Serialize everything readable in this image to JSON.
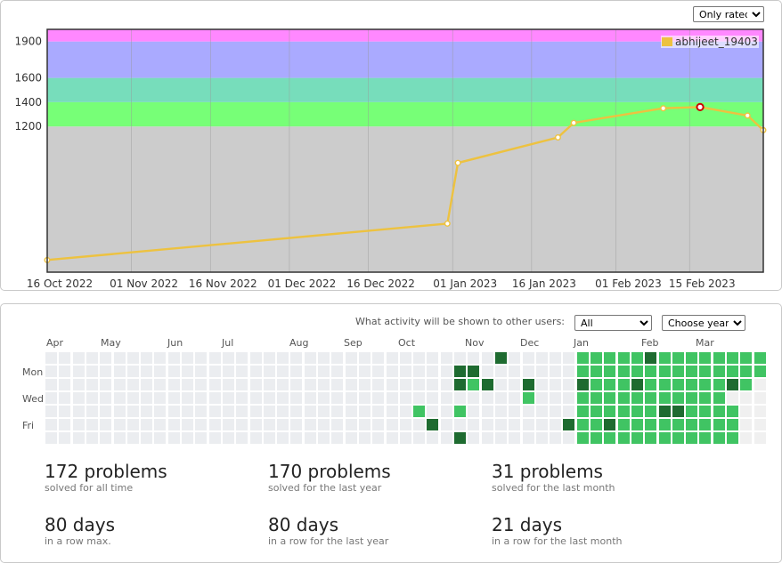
{
  "controls": {
    "rated_filter": {
      "selected": "Only rated"
    },
    "visibility": {
      "label": "What activity will be shown to other users:",
      "selected": "All"
    },
    "year": {
      "selected": "Choose year"
    }
  },
  "chart_data": {
    "type": "line",
    "title": "",
    "xlabel": "",
    "ylabel": "",
    "x_ticks": [
      "16 Oct 2022",
      "01 Nov 2022",
      "16 Nov 2022",
      "01 Dec 2022",
      "16 Dec 2022",
      "01 Jan 2023",
      "16 Jan 2023",
      "01 Feb 2023",
      "15 Feb 2023"
    ],
    "y_ticks": [
      1200,
      1400,
      1600,
      1900
    ],
    "ylim": [
      0,
      2000
    ],
    "xlim": [
      "2022-10-16",
      "2023-03-01"
    ],
    "bands": [
      {
        "from": 0,
        "to": 1200,
        "color": "#cccccc"
      },
      {
        "from": 1200,
        "to": 1400,
        "color": "#77ff77"
      },
      {
        "from": 1400,
        "to": 1600,
        "color": "#77ddbb"
      },
      {
        "from": 1600,
        "to": 1900,
        "color": "#aaaaff"
      },
      {
        "from": 1900,
        "to": 2000,
        "color": "#ff88ff"
      }
    ],
    "series": [
      {
        "name": "abhijeet_19403",
        "color": "#edc240",
        "points": [
          {
            "x": "2022-10-16",
            "y": 100
          },
          {
            "x": "2022-12-31",
            "y": 400
          },
          {
            "x": "2023-01-02",
            "y": 900
          },
          {
            "x": "2023-01-21",
            "y": 1110
          },
          {
            "x": "2023-01-24",
            "y": 1230
          },
          {
            "x": "2023-02-10",
            "y": 1350
          },
          {
            "x": "2023-02-17",
            "y": 1360,
            "highlight": true
          },
          {
            "x": "2023-02-26",
            "y": 1290
          },
          {
            "x": "2023-03-01",
            "y": 1170
          }
        ]
      }
    ]
  },
  "heatmap": {
    "months": [
      "Apr",
      "May",
      "Jun",
      "Jul",
      "Aug",
      "Sep",
      "Oct",
      "Nov",
      "Dec",
      "Jan",
      "Feb",
      "Mar"
    ],
    "day_labels": [
      "Mon",
      "Wed",
      "Fri"
    ],
    "colors": {
      "0": "#ebedf0",
      "1": "#f0f0f0",
      "2": "#40c463",
      "3": "#1e6b30"
    },
    "weeks": [
      [
        0,
        0,
        0,
        0,
        0,
        0,
        0
      ],
      [
        0,
        0,
        0,
        0,
        0,
        0,
        0
      ],
      [
        0,
        0,
        0,
        0,
        0,
        0,
        0
      ],
      [
        0,
        0,
        0,
        0,
        0,
        0,
        0
      ],
      [
        0,
        0,
        0,
        0,
        0,
        0,
        0
      ],
      [
        0,
        0,
        0,
        0,
        0,
        0,
        0
      ],
      [
        0,
        0,
        0,
        0,
        0,
        0,
        0
      ],
      [
        0,
        0,
        0,
        0,
        0,
        0,
        0
      ],
      [
        0,
        0,
        0,
        0,
        0,
        0,
        0
      ],
      [
        0,
        0,
        0,
        0,
        0,
        0,
        0
      ],
      [
        0,
        0,
        0,
        0,
        0,
        0,
        0
      ],
      [
        0,
        0,
        0,
        0,
        0,
        0,
        0
      ],
      [
        0,
        0,
        0,
        0,
        0,
        0,
        0
      ],
      [
        0,
        0,
        0,
        0,
        0,
        0,
        0
      ],
      [
        0,
        0,
        0,
        0,
        0,
        0,
        0
      ],
      [
        0,
        0,
        0,
        0,
        0,
        0,
        0
      ],
      [
        0,
        0,
        0,
        0,
        0,
        0,
        0
      ],
      [
        0,
        0,
        0,
        0,
        0,
        0,
        0
      ],
      [
        0,
        0,
        0,
        0,
        0,
        0,
        0
      ],
      [
        0,
        0,
        0,
        0,
        0,
        0,
        0
      ],
      [
        0,
        0,
        0,
        0,
        0,
        0,
        0
      ],
      [
        0,
        0,
        0,
        0,
        0,
        0,
        0
      ],
      [
        0,
        0,
        0,
        0,
        0,
        0,
        0
      ],
      [
        0,
        0,
        0,
        0,
        0,
        0,
        0
      ],
      [
        0,
        0,
        0,
        0,
        0,
        0,
        0
      ],
      [
        0,
        0,
        0,
        0,
        0,
        0,
        0
      ],
      [
        0,
        0,
        0,
        0,
        0,
        0,
        0
      ],
      [
        0,
        0,
        0,
        0,
        2,
        0,
        0
      ],
      [
        0,
        0,
        0,
        0,
        0,
        3,
        0
      ],
      [
        0,
        0,
        0,
        0,
        0,
        0,
        0
      ],
      [
        0,
        3,
        3,
        0,
        2,
        0,
        3
      ],
      [
        0,
        3,
        2,
        0,
        0,
        0,
        0
      ],
      [
        0,
        0,
        3,
        0,
        0,
        0,
        0
      ],
      [
        3,
        0,
        0,
        0,
        0,
        0,
        0
      ],
      [
        0,
        0,
        0,
        0,
        0,
        0,
        0
      ],
      [
        0,
        0,
        3,
        2,
        0,
        0,
        0
      ],
      [
        0,
        0,
        0,
        0,
        0,
        0,
        0
      ],
      [
        0,
        0,
        0,
        0,
        0,
        0,
        0
      ],
      [
        0,
        0,
        0,
        0,
        0,
        3,
        0
      ],
      [
        2,
        2,
        3,
        2,
        2,
        2,
        2
      ],
      [
        2,
        2,
        2,
        2,
        2,
        2,
        2
      ],
      [
        2,
        2,
        2,
        2,
        2,
        3,
        2
      ],
      [
        2,
        2,
        2,
        2,
        2,
        2,
        2
      ],
      [
        2,
        2,
        3,
        2,
        2,
        2,
        2
      ],
      [
        3,
        2,
        2,
        2,
        2,
        2,
        2
      ],
      [
        2,
        2,
        2,
        2,
        3,
        2,
        2
      ],
      [
        2,
        2,
        2,
        2,
        3,
        2,
        2
      ],
      [
        2,
        2,
        2,
        2,
        2,
        2,
        2
      ],
      [
        2,
        2,
        2,
        2,
        2,
        2,
        2
      ],
      [
        2,
        2,
        2,
        2,
        2,
        2,
        2
      ],
      [
        2,
        2,
        3,
        1,
        2,
        2,
        2
      ],
      [
        2,
        2,
        2,
        1,
        1,
        1,
        1
      ],
      [
        2,
        2,
        1,
        1,
        1,
        1,
        1
      ]
    ]
  },
  "stats": [
    {
      "big": "172 problems",
      "small": "solved for all time"
    },
    {
      "big": "170 problems",
      "small": "solved for the last year"
    },
    {
      "big": "31 problems",
      "small": "solved for the last month"
    },
    {
      "big": "80 days",
      "small": "in a row max."
    },
    {
      "big": "80 days",
      "small": "in a row for the last year"
    },
    {
      "big": "21 days",
      "small": "in a row for the last month"
    }
  ]
}
